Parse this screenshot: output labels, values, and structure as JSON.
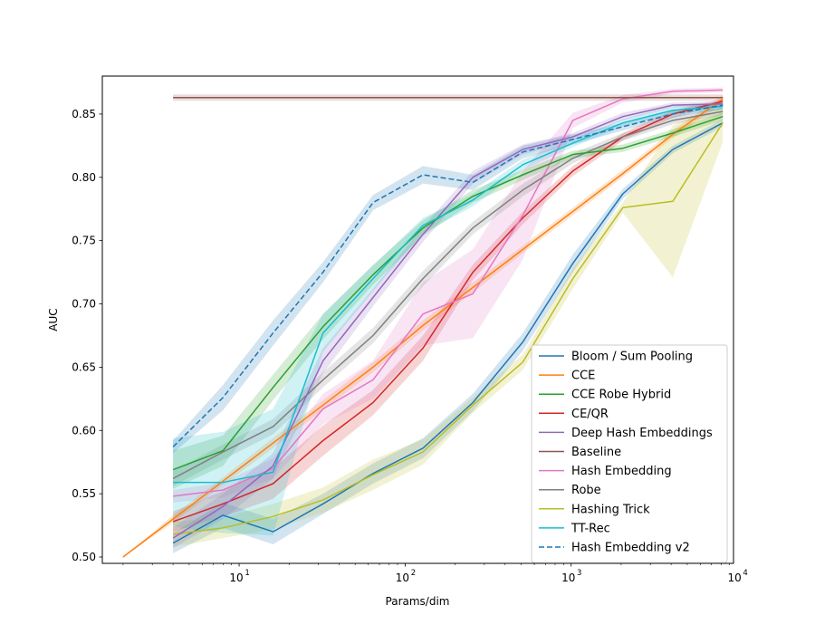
{
  "chart_data": {
    "type": "line",
    "title": "",
    "xlabel": "Params/dim",
    "ylabel": "AUC",
    "xscale": "log",
    "xlim": [
      1.5,
      9500
    ],
    "ylim": [
      0.495,
      0.88
    ],
    "xticks": [
      {
        "value": 10,
        "base": "10",
        "exp": "1"
      },
      {
        "value": 100,
        "base": "10",
        "exp": "2"
      },
      {
        "value": 1000,
        "base": "10",
        "exp": "3"
      },
      {
        "value": 10000,
        "base": "10",
        "exp": "4"
      }
    ],
    "yticks": [
      {
        "value": 0.5,
        "label": "0.50"
      },
      {
        "value": 0.55,
        "label": "0.55"
      },
      {
        "value": 0.6,
        "label": "0.60"
      },
      {
        "value": 0.65,
        "label": "0.65"
      },
      {
        "value": 0.7,
        "label": "0.70"
      },
      {
        "value": 0.75,
        "label": "0.75"
      },
      {
        "value": 0.8,
        "label": "0.80"
      },
      {
        "value": 0.85,
        "label": "0.85"
      }
    ],
    "grid": false,
    "legend_position": "lower-right",
    "series": [
      {
        "name": "Bloom / Sum Pooling",
        "color": "#1f77b4",
        "dash": false,
        "x": [
          4,
          8,
          16,
          32,
          64,
          128,
          256,
          512,
          1024,
          2048,
          4096,
          8192
        ],
        "y": [
          0.511,
          0.533,
          0.52,
          0.542,
          0.566,
          0.586,
          0.622,
          0.67,
          0.732,
          0.787,
          0.822,
          0.843
        ],
        "band": [
          0.008,
          0.01,
          0.01,
          0.008,
          0.008,
          0.008,
          0.007,
          0.007,
          0.007,
          0.004,
          0.003,
          0.003
        ]
      },
      {
        "name": "CCE",
        "color": "#ff7f0e",
        "dash": false,
        "x": [
          2,
          4,
          8,
          16,
          32,
          64,
          128,
          256,
          512,
          1024,
          2048,
          4096,
          8192
        ],
        "y": [
          0.5,
          0.53,
          0.56,
          0.59,
          0.62,
          0.65,
          0.683,
          0.713,
          0.743,
          0.773,
          0.803,
          0.834,
          0.862
        ],
        "band": [
          0,
          0.003,
          0.003,
          0.004,
          0.004,
          0.004,
          0.004,
          0.004,
          0.003,
          0.003,
          0.003,
          0.003,
          0.003
        ]
      },
      {
        "name": "CE/QR",
        "color": "#d62728",
        "dash": false,
        "x": [
          4,
          8,
          16,
          32,
          64,
          128,
          256,
          512,
          1024,
          2048,
          4096,
          8192
        ],
        "y": [
          0.528,
          0.542,
          0.558,
          0.592,
          0.622,
          0.665,
          0.725,
          0.768,
          0.805,
          0.832,
          0.85,
          0.86
        ],
        "band": [
          0.008,
          0.01,
          0.012,
          0.012,
          0.01,
          0.01,
          0.006,
          0.005,
          0.004,
          0.003,
          0.003,
          0.002
        ]
      },
      {
        "name": "Hashing Trick",
        "color": "#bcbd22",
        "dash": false,
        "x": [
          4,
          8,
          16,
          32,
          64,
          128,
          256,
          512,
          1024,
          2048,
          4096,
          8192
        ],
        "y": [
          0.518,
          0.523,
          0.532,
          0.545,
          0.565,
          0.583,
          0.62,
          0.654,
          0.72,
          0.776,
          0.781,
          0.843
        ],
        "band": [
          0.01,
          0.008,
          0.01,
          0.01,
          0.012,
          0.01,
          0.006,
          0.006,
          0.008,
          0.004,
          0.06,
          0.015
        ]
      },
      {
        "name": "Hash Embedding",
        "color": "#e377c2",
        "dash": false,
        "x": [
          4,
          8,
          16,
          32,
          64,
          128,
          256,
          512,
          1024,
          2048,
          4096,
          8192
        ],
        "y": [
          0.548,
          0.553,
          0.57,
          0.617,
          0.64,
          0.692,
          0.708,
          0.77,
          0.845,
          0.862,
          0.868,
          0.869
        ],
        "band": [
          0.005,
          0.006,
          0.008,
          0.012,
          0.015,
          0.025,
          0.035,
          0.035,
          0.006,
          0.003,
          0.002,
          0.002
        ]
      },
      {
        "name": "Robe",
        "color": "#7f7f7f",
        "dash": false,
        "x": [
          4,
          8,
          16,
          32,
          64,
          128,
          256,
          512,
          1024,
          2048,
          4096,
          8192
        ],
        "y": [
          0.562,
          0.583,
          0.603,
          0.64,
          0.675,
          0.72,
          0.76,
          0.79,
          0.815,
          0.832,
          0.845,
          0.852
        ],
        "band": [
          0.006,
          0.006,
          0.006,
          0.006,
          0.006,
          0.006,
          0.005,
          0.005,
          0.004,
          0.003,
          0.003,
          0.003
        ]
      },
      {
        "name": "Deep Hash Embeddings",
        "color": "#9467bd",
        "dash": false,
        "x": [
          4,
          8,
          16,
          32,
          64,
          128,
          256,
          512,
          1024,
          2048,
          4096,
          8192
        ],
        "y": [
          0.515,
          0.54,
          0.572,
          0.655,
          0.705,
          0.755,
          0.8,
          0.822,
          0.832,
          0.848,
          0.857,
          0.858
        ],
        "band": [
          0.008,
          0.01,
          0.01,
          0.01,
          0.007,
          0.006,
          0.005,
          0.004,
          0.003,
          0.003,
          0.002,
          0.002
        ]
      },
      {
        "name": "CCE Robe Hybrid",
        "color": "#2ca02c",
        "dash": false,
        "x": [
          4,
          8,
          16,
          32,
          64,
          128,
          256,
          512,
          1024,
          2048,
          4096,
          8192
        ],
        "y": [
          0.569,
          0.584,
          0.634,
          0.682,
          0.723,
          0.76,
          0.785,
          0.802,
          0.818,
          0.823,
          0.835,
          0.848
        ],
        "band": [
          0.015,
          0.012,
          0.01,
          0.01,
          0.008,
          0.006,
          0.005,
          0.004,
          0.003,
          0.003,
          0.003,
          0.003
        ]
      },
      {
        "name": "TT-Rec",
        "color": "#17becf",
        "dash": false,
        "x": [
          4,
          8,
          16,
          32,
          64,
          128,
          256,
          512,
          1024,
          2048,
          4096,
          8192
        ],
        "y": [
          0.559,
          0.559,
          0.567,
          0.677,
          0.72,
          0.762,
          0.782,
          0.81,
          0.827,
          0.843,
          0.853,
          0.856
        ],
        "band": [
          0.035,
          0.04,
          0.05,
          0.015,
          0.01,
          0.006,
          0.005,
          0.004,
          0.003,
          0.003,
          0.003,
          0.003
        ]
      },
      {
        "name": "Hash Embedding v2",
        "color": "#1f77b4",
        "dash": true,
        "x": [
          4,
          8,
          16,
          32,
          64,
          128,
          256,
          512,
          1024,
          2048,
          4096,
          8192
        ],
        "y": [
          0.587,
          0.626,
          0.677,
          0.725,
          0.78,
          0.802,
          0.796,
          0.82,
          0.83,
          0.84,
          0.85,
          0.857
        ],
        "band": [
          0.005,
          0.01,
          0.01,
          0.008,
          0.006,
          0.007,
          0.006,
          0.005,
          0.004,
          0.003,
          0.003,
          0.003
        ]
      },
      {
        "name": "Baseline",
        "color": "#8c564b",
        "dash": false,
        "x": [
          4,
          8192
        ],
        "y": [
          0.863,
          0.863
        ],
        "band": [
          0.0025,
          0.0025
        ]
      }
    ],
    "legend_order": [
      "Bloom / Sum Pooling",
      "CCE",
      "CCE Robe Hybrid",
      "CE/QR",
      "Deep Hash Embeddings",
      "Baseline",
      "Hash Embedding",
      "Robe",
      "Hashing Trick",
      "TT-Rec",
      "Hash Embedding v2"
    ]
  }
}
